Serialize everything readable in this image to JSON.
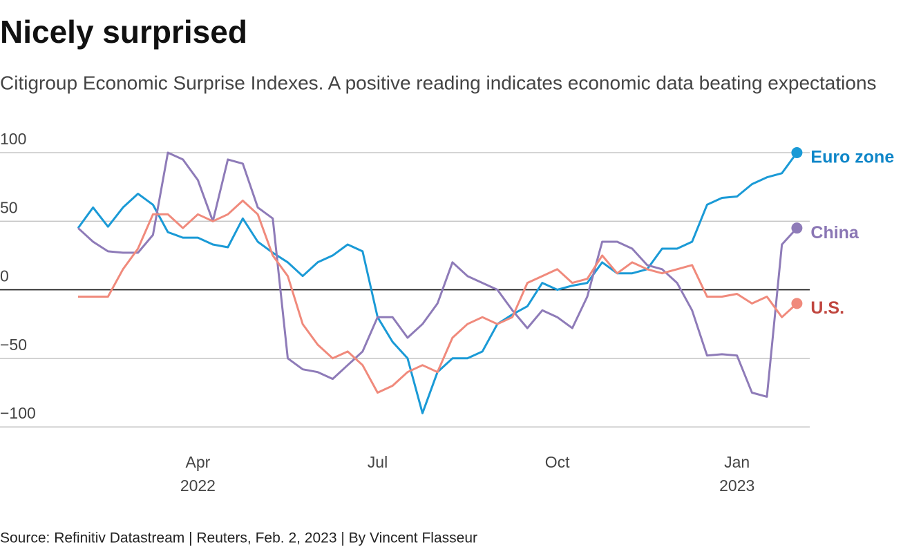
{
  "chart_data": {
    "type": "line",
    "title": "Nicely surprised",
    "subtitle": "Citigroup Economic Surprise Indexes. A positive reading indicates economic data beating expectations",
    "source": "Source: Refinitiv Datastream | Reuters, Feb. 2, 2023 | By Vincent Flasseur",
    "x": [
      "2022-02",
      "2022-02",
      "2022-02",
      "2022-02",
      "2022-03",
      "2022-03",
      "2022-03",
      "2022-03",
      "2022-04",
      "2022-04",
      "2022-04",
      "2022-04",
      "2022-05",
      "2022-05",
      "2022-05",
      "2022-05",
      "2022-06",
      "2022-06",
      "2022-06",
      "2022-06",
      "2022-07",
      "2022-07",
      "2022-07",
      "2022-07",
      "2022-08",
      "2022-08",
      "2022-08",
      "2022-08",
      "2022-09",
      "2022-09",
      "2022-09",
      "2022-09",
      "2022-10",
      "2022-10",
      "2022-10",
      "2022-10",
      "2022-11",
      "2022-11",
      "2022-11",
      "2022-11",
      "2022-12",
      "2022-12",
      "2022-12",
      "2022-12",
      "2023-01",
      "2023-01",
      "2023-01",
      "2023-01",
      "2023-02"
    ],
    "series": [
      {
        "name": "Euro zone",
        "color": "#1a9ad6",
        "label_color": "#0e86c8",
        "values": [
          45,
          60,
          46,
          60,
          70,
          62,
          42,
          38,
          38,
          33,
          31,
          52,
          35,
          27,
          20,
          10,
          20,
          25,
          33,
          28,
          -20,
          -38,
          -50,
          -90,
          -60,
          -50,
          -50,
          -45,
          -25,
          -18,
          -12,
          5,
          0,
          3,
          5,
          20,
          12,
          12,
          15,
          30,
          30,
          35,
          62,
          67,
          68,
          77,
          82,
          85,
          100
        ]
      },
      {
        "name": "China",
        "color": "#8e7bb8",
        "label_color": "#8a76b4",
        "values": [
          45,
          35,
          28,
          27,
          27,
          40,
          100,
          95,
          80,
          50,
          95,
          92,
          60,
          52,
          -50,
          -58,
          -60,
          -65,
          -55,
          -45,
          -20,
          -20,
          -35,
          -25,
          -10,
          20,
          10,
          5,
          0,
          -15,
          -28,
          -15,
          -20,
          -28,
          -5,
          35,
          35,
          30,
          18,
          15,
          5,
          -15,
          -48,
          -47,
          -48,
          -75,
          -78,
          33,
          45
        ]
      },
      {
        "name": "U.S.",
        "color": "#f08a7c",
        "label_color": "#c0463f",
        "values": [
          -5,
          -5,
          -5,
          15,
          30,
          55,
          55,
          45,
          55,
          50,
          55,
          65,
          55,
          25,
          10,
          -25,
          -40,
          -50,
          -45,
          -55,
          -75,
          -70,
          -60,
          -55,
          -60,
          -35,
          -25,
          -20,
          -25,
          -20,
          5,
          10,
          15,
          5,
          8,
          25,
          12,
          20,
          15,
          12,
          15,
          18,
          -5,
          -5,
          -3,
          -10,
          -5,
          -20,
          -10
        ]
      }
    ],
    "ylim": [
      -107,
      102
    ],
    "yticks": [
      {
        "value": -100,
        "label": "−100"
      },
      {
        "value": -50,
        "label": "−50"
      },
      0,
      50,
      100
    ],
    "xticks": [
      {
        "value": "2022-04",
        "label": "Apr",
        "year": "2022"
      },
      {
        "value": "2022-07",
        "label": "Jul"
      },
      {
        "value": "2022-10",
        "label": "Oct"
      },
      {
        "value": "2023-01",
        "label": "Jan",
        "year": "2023"
      }
    ],
    "grid": true
  }
}
